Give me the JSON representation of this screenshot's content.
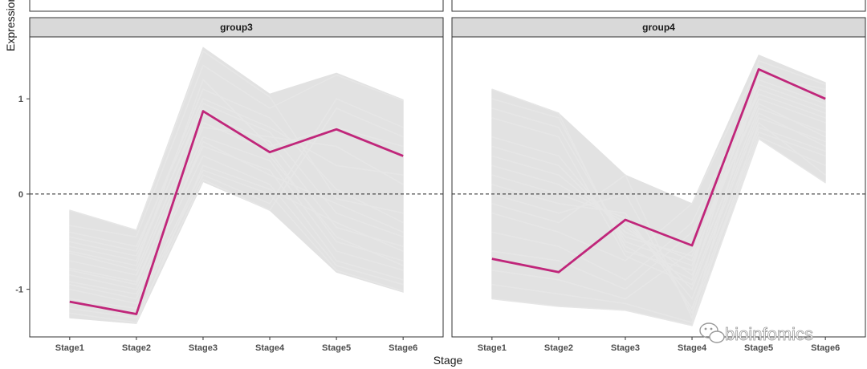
{
  "chart_data": {
    "type": "line",
    "ylabel": "Expression",
    "xlabel": "Stage",
    "categories": [
      "Stage1",
      "Stage2",
      "Stage3",
      "Stage4",
      "Stage5",
      "Stage6"
    ],
    "ylim": [
      -1.5,
      1.65
    ],
    "yticks": [
      -1,
      0,
      1
    ],
    "reference_line": 0,
    "grid": false,
    "colors": {
      "highlight": "#c0267a",
      "background_lines": "#e2e2e2",
      "strip": "#d9d9d9",
      "ref_line": "#222222"
    },
    "panels": [
      {
        "strip": "group3",
        "mean": [
          -1.13,
          -1.26,
          0.87,
          0.44,
          0.68,
          0.4
        ],
        "band_upper": [
          -0.17,
          -0.38,
          1.54,
          1.05,
          1.27,
          0.99
        ],
        "band_lower": [
          -1.3,
          -1.36,
          0.13,
          -0.17,
          -0.82,
          -1.03
        ],
        "lines": [
          [
            -0.17,
            -0.38,
            1.5,
            1.02,
            -0.05,
            -0.2
          ],
          [
            -0.33,
            -0.45,
            1.35,
            0.9,
            1.25,
            0.98
          ],
          [
            -0.45,
            -0.6,
            1.1,
            0.8,
            0.05,
            -0.3
          ],
          [
            -0.55,
            -0.7,
            0.95,
            0.65,
            -0.2,
            -0.45
          ],
          [
            -0.62,
            -0.8,
            0.85,
            0.55,
            -0.35,
            -0.55
          ],
          [
            -0.7,
            -0.85,
            0.75,
            0.45,
            -0.5,
            -0.7
          ],
          [
            -0.78,
            -0.92,
            0.6,
            0.35,
            -0.6,
            -0.8
          ],
          [
            -0.85,
            -1.0,
            0.5,
            0.25,
            -0.7,
            -0.9
          ],
          [
            -0.92,
            -1.05,
            0.4,
            0.1,
            -0.75,
            -0.95
          ],
          [
            -1.0,
            -1.15,
            0.25,
            0.0,
            -0.8,
            -1.02
          ],
          [
            -1.1,
            -1.2,
            0.2,
            -0.1,
            1.0,
            0.7
          ],
          [
            -1.2,
            -1.3,
            0.15,
            -0.17,
            0.9,
            0.6
          ],
          [
            -0.6,
            -0.75,
            1.2,
            0.5,
            0.7,
            0.5
          ],
          [
            -0.4,
            -0.55,
            1.0,
            0.7,
            0.3,
            0.2
          ],
          [
            -0.8,
            -0.95,
            0.7,
            0.6,
            0.5,
            0.1
          ],
          [
            -0.95,
            -1.1,
            0.55,
            0.2,
            -0.1,
            -0.4
          ],
          [
            -1.25,
            -1.35,
            0.3,
            0.05,
            -0.3,
            -0.6
          ],
          [
            -0.5,
            -0.65,
            0.9,
            0.4,
            -0.45,
            -0.75
          ]
        ]
      },
      {
        "strip": "group4",
        "mean": [
          -0.68,
          -0.82,
          -0.27,
          -0.54,
          1.31,
          1.0
        ],
        "band_upper": [
          1.1,
          0.85,
          0.2,
          -0.1,
          1.46,
          1.17
        ],
        "band_lower": [
          -1.1,
          -1.18,
          -1.22,
          -1.38,
          0.58,
          0.12
        ],
        "lines": [
          [
            1.1,
            0.85,
            -0.6,
            -0.8,
            1.4,
            1.15
          ],
          [
            1.0,
            0.8,
            -0.55,
            -0.9,
            1.3,
            1.05
          ],
          [
            0.9,
            0.7,
            -0.5,
            -0.75,
            1.2,
            0.95
          ],
          [
            0.6,
            0.4,
            -0.45,
            -0.65,
            1.1,
            0.85
          ],
          [
            0.5,
            0.3,
            -0.4,
            -0.7,
            1.0,
            0.75
          ],
          [
            0.4,
            0.2,
            -0.35,
            -0.85,
            0.9,
            0.65
          ],
          [
            0.3,
            0.1,
            -0.3,
            -1.0,
            0.8,
            0.55
          ],
          [
            0.2,
            0.0,
            -0.25,
            -1.1,
            0.7,
            0.45
          ],
          [
            0.1,
            -0.1,
            -0.2,
            -1.2,
            0.65,
            0.4
          ],
          [
            0.0,
            -0.2,
            0.0,
            -1.25,
            0.6,
            0.3
          ],
          [
            -0.1,
            -0.3,
            0.2,
            -1.3,
            1.25,
            1.1
          ],
          [
            -0.2,
            -0.4,
            -0.7,
            -0.1,
            1.35,
            1.0
          ],
          [
            -0.4,
            -0.55,
            -0.9,
            -0.3,
            1.15,
            0.9
          ],
          [
            -0.6,
            -0.7,
            -1.0,
            -0.4,
            1.05,
            0.8
          ],
          [
            -0.8,
            -0.9,
            -1.1,
            -0.6,
            0.95,
            0.6
          ],
          [
            -0.95,
            -1.05,
            -1.15,
            -1.35,
            0.75,
            0.2
          ],
          [
            -1.1,
            -1.18,
            -1.22,
            -1.38,
            0.58,
            0.12
          ],
          [
            0.8,
            0.6,
            -0.65,
            -0.95,
            0.85,
            0.5
          ]
        ]
      }
    ]
  },
  "watermark": {
    "text": "bioinfomics",
    "icon": "wechat-icon"
  }
}
